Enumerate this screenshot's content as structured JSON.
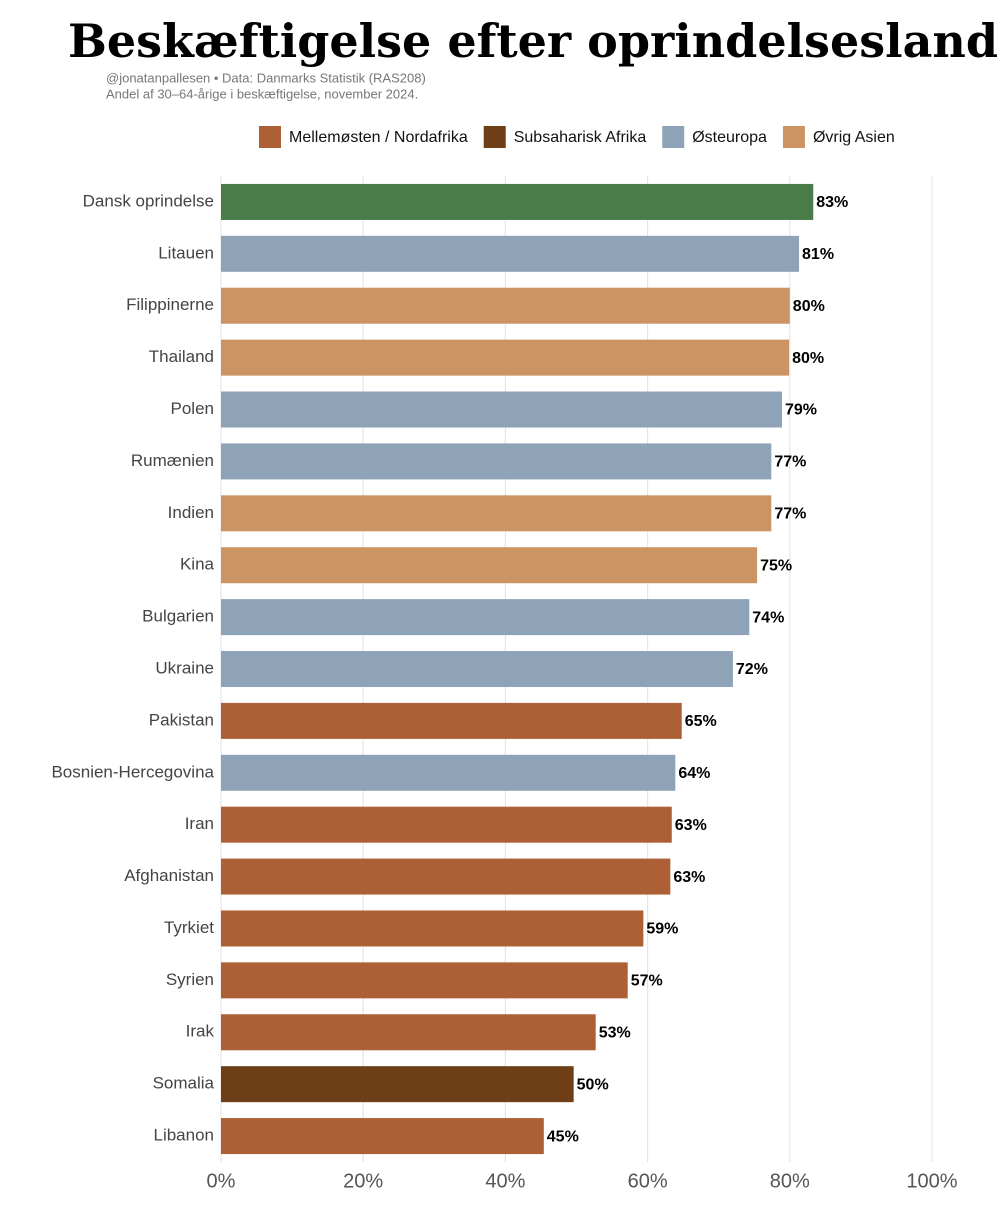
{
  "chart_data": {
    "type": "barh",
    "title": "Beskæftigelse efter oprindelsesland",
    "subtitle": [
      "@jonatanpallesen • Data: Danmarks Statistik (RAS208)",
      "Andel af 30–64-årige i beskæftigelse, november 2024."
    ],
    "legend": [
      {
        "name": "Mellemøsten / Nordafrika",
        "color": "#ad5f35"
      },
      {
        "name": "Subsaharisk Afrika",
        "color": "#6e3f16"
      },
      {
        "name": "Østeuropa",
        "color": "#8fa3b8"
      },
      {
        "name": "Øvrig Asien",
        "color": "#cc9464"
      }
    ],
    "categories": [
      "Dansk oprindelse",
      "Litauen",
      "Filippinerne",
      "Thailand",
      "Polen",
      "Rumænien",
      "Indien",
      "Kina",
      "Bulgarien",
      "Ukraine",
      "Pakistan",
      "Bosnien-Hercegovina",
      "Iran",
      "Afghanistan",
      "Tyrkiet",
      "Syrien",
      "Irak",
      "Somalia",
      "Libanon"
    ],
    "values": [
      83.3,
      81.3,
      80.0,
      79.9,
      78.9,
      77.4,
      77.4,
      75.4,
      74.3,
      72.0,
      64.8,
      63.9,
      63.4,
      63.2,
      59.4,
      57.2,
      52.7,
      49.6,
      45.4
    ],
    "value_labels": [
      "83%",
      "81%",
      "80%",
      "80%",
      "79%",
      "77%",
      "77%",
      "75%",
      "74%",
      "72%",
      "65%",
      "64%",
      "63%",
      "63%",
      "59%",
      "57%",
      "53%",
      "50%",
      "45%"
    ],
    "colors": [
      "#4a7c4a",
      "#8fa3b8",
      "#cc9464",
      "#cc9464",
      "#8fa3b8",
      "#8fa3b8",
      "#cc9464",
      "#cc9464",
      "#8fa3b8",
      "#8fa3b8",
      "#ad5f35",
      "#8fa3b8",
      "#ad5f35",
      "#ad5f35",
      "#ad5f35",
      "#ad5f35",
      "#ad5f35",
      "#6e3f16",
      "#ad5f35"
    ],
    "xlim": [
      0,
      100
    ],
    "xticks": [
      {
        "value": 0,
        "label": "0%"
      },
      {
        "value": 20,
        "label": "20%"
      },
      {
        "value": 40,
        "label": "40%"
      },
      {
        "value": 60,
        "label": "60%"
      },
      {
        "value": 80,
        "label": "80%"
      },
      {
        "value": 100,
        "label": "100%"
      }
    ],
    "grid": true
  }
}
